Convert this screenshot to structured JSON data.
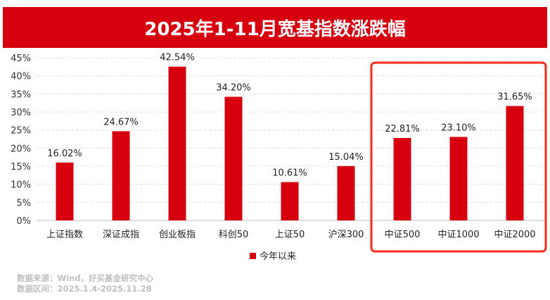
{
  "chart_data": {
    "type": "bar",
    "title": "2025年1-11月宽基指数涨跌幅",
    "categories": [
      "上证指数",
      "深证成指",
      "创业板指",
      "科创50",
      "上证50",
      "沪深300",
      "中证500",
      "中证1000",
      "中证2000"
    ],
    "series": [
      {
        "name": "今年以来",
        "values": [
          16.02,
          24.67,
          42.54,
          34.2,
          10.61,
          15.04,
          22.81,
          23.1,
          31.65
        ]
      }
    ],
    "data_labels": [
      "16.02%",
      "24.67%",
      "42.54%",
      "34.20%",
      "10.61%",
      "15.04%",
      "22.81%",
      "23.10%",
      "31.65%"
    ],
    "yticks": [
      "0%",
      "5%",
      "10%",
      "15%",
      "20%",
      "25%",
      "30%",
      "35%",
      "40%",
      "45%"
    ],
    "ylim": [
      0,
      45
    ],
    "grid": true,
    "legend": "bottom",
    "highlighted_categories": [
      "中证500",
      "中证1000",
      "中证2000"
    ],
    "colors": {
      "bar": "#d7000f",
      "highlight": "#ff2a1a"
    }
  },
  "footer": {
    "source": "数据来源：Wind，好买基金研究中心",
    "period": "数据区间：2025.1.4-2025.11.28"
  }
}
